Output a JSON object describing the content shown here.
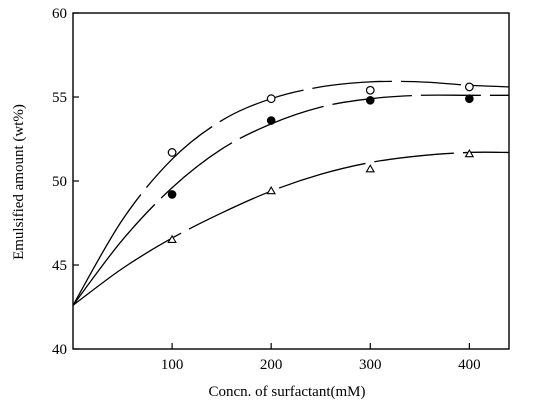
{
  "chart_data": {
    "type": "scatter",
    "title": "",
    "xlabel": "Concn. of surfactant(mM)",
    "ylabel": "Emulsified amount (wt%)",
    "xlim": [
      0,
      440
    ],
    "ylim": [
      40,
      60
    ],
    "x_ticks": [
      100,
      200,
      300,
      400
    ],
    "y_ticks": [
      40,
      45,
      50,
      55,
      60
    ],
    "x_tick_labels": [
      "100",
      "200",
      "300",
      "400"
    ],
    "y_tick_labels": [
      "40",
      "45",
      "50",
      "55",
      "60"
    ],
    "grid": false,
    "legend": "none",
    "series": [
      {
        "marker": "open-circle",
        "points": [
          [
            100,
            51.7
          ],
          [
            200,
            54.9
          ],
          [
            300,
            55.4
          ],
          [
            400,
            55.6
          ]
        ],
        "curve": [
          [
            0,
            42.6
          ],
          [
            50,
            47.7
          ],
          [
            100,
            51.3
          ],
          [
            150,
            53.6
          ],
          [
            200,
            54.9
          ],
          [
            250,
            55.6
          ],
          [
            300,
            55.9
          ],
          [
            350,
            55.9
          ],
          [
            400,
            55.7
          ],
          [
            440,
            55.6
          ]
        ]
      },
      {
        "marker": "filled-circle",
        "points": [
          [
            100,
            49.2
          ],
          [
            200,
            53.6
          ],
          [
            300,
            54.8
          ],
          [
            400,
            54.9
          ]
        ],
        "curve": [
          [
            0,
            42.6
          ],
          [
            50,
            46.5
          ],
          [
            100,
            49.6
          ],
          [
            150,
            51.9
          ],
          [
            200,
            53.4
          ],
          [
            250,
            54.4
          ],
          [
            300,
            54.9
          ],
          [
            350,
            55.1
          ],
          [
            400,
            55.1
          ],
          [
            440,
            55.1
          ]
        ]
      },
      {
        "marker": "open-triangle",
        "points": [
          [
            100,
            46.5
          ],
          [
            200,
            49.4
          ],
          [
            300,
            50.7
          ],
          [
            400,
            51.6
          ]
        ],
        "curve": [
          [
            0,
            42.6
          ],
          [
            50,
            44.8
          ],
          [
            100,
            46.6
          ],
          [
            150,
            48.1
          ],
          [
            200,
            49.4
          ],
          [
            250,
            50.4
          ],
          [
            300,
            51.1
          ],
          [
            350,
            51.5
          ],
          [
            400,
            51.7
          ],
          [
            440,
            51.7
          ]
        ]
      }
    ]
  }
}
